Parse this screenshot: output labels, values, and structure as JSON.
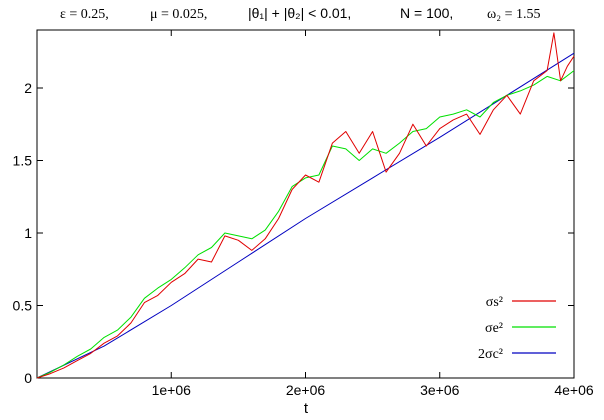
{
  "chart_data": {
    "type": "line",
    "title_parts": [
      "ε = 0.25,",
      "μ = 0.025,",
      "|θ₁| + |θ₂| < 0.01,",
      "N = 100,",
      "ω₂ = 1.55"
    ],
    "xlabel": "t",
    "ylabel": "",
    "xlim": [
      0,
      4000000
    ],
    "ylim": [
      0,
      2.4
    ],
    "x_ticks": [
      1000000,
      2000000,
      3000000,
      4000000
    ],
    "x_tick_labels": [
      "1e+06",
      "2e+06",
      "3e+06",
      "4e+06"
    ],
    "y_ticks": [
      0,
      0.5,
      1,
      1.5,
      2
    ],
    "y_tick_labels": [
      "0",
      "0.5",
      "1",
      "1.5",
      "2"
    ],
    "grid": false,
    "legend_position": "bottom-right",
    "series": [
      {
        "name": "σs²",
        "color": "#e00000",
        "x": [
          0,
          100000,
          200000,
          300000,
          400000,
          500000,
          600000,
          700000,
          800000,
          900000,
          1000000,
          1100000,
          1200000,
          1300000,
          1400000,
          1500000,
          1600000,
          1700000,
          1800000,
          1900000,
          2000000,
          2100000,
          2200000,
          2300000,
          2400000,
          2500000,
          2600000,
          2700000,
          2800000,
          2900000,
          3000000,
          3100000,
          3200000,
          3300000,
          3400000,
          3500000,
          3600000,
          3700000,
          3800000,
          3850000,
          3900000,
          3950000,
          4000000
        ],
        "y": [
          0.0,
          0.03,
          0.07,
          0.12,
          0.17,
          0.24,
          0.29,
          0.38,
          0.52,
          0.57,
          0.66,
          0.72,
          0.82,
          0.8,
          0.98,
          0.95,
          0.88,
          0.96,
          1.1,
          1.3,
          1.4,
          1.35,
          1.62,
          1.7,
          1.55,
          1.7,
          1.42,
          1.55,
          1.75,
          1.6,
          1.72,
          1.78,
          1.82,
          1.68,
          1.85,
          1.95,
          1.82,
          2.05,
          2.12,
          2.38,
          2.05,
          2.15,
          2.22
        ]
      },
      {
        "name": "σe²",
        "color": "#00e000",
        "x": [
          0,
          100000,
          200000,
          300000,
          400000,
          500000,
          600000,
          700000,
          800000,
          900000,
          1000000,
          1100000,
          1200000,
          1300000,
          1400000,
          1500000,
          1600000,
          1700000,
          1800000,
          1900000,
          2000000,
          2100000,
          2200000,
          2300000,
          2400000,
          2500000,
          2600000,
          2700000,
          2800000,
          2900000,
          3000000,
          3100000,
          3200000,
          3300000,
          3400000,
          3500000,
          3600000,
          3700000,
          3800000,
          3900000,
          4000000
        ],
        "y": [
          0.0,
          0.04,
          0.09,
          0.15,
          0.2,
          0.28,
          0.33,
          0.42,
          0.55,
          0.62,
          0.68,
          0.76,
          0.85,
          0.9,
          1.0,
          0.98,
          0.96,
          1.02,
          1.15,
          1.32,
          1.38,
          1.4,
          1.6,
          1.58,
          1.5,
          1.58,
          1.55,
          1.62,
          1.7,
          1.72,
          1.8,
          1.82,
          1.85,
          1.8,
          1.9,
          1.95,
          1.98,
          2.02,
          2.08,
          2.05,
          2.12
        ]
      },
      {
        "name": "2σc²",
        "color": "#0000c0",
        "x": [
          0,
          500000,
          1000000,
          1500000,
          2000000,
          2500000,
          3000000,
          3500000,
          4000000
        ],
        "y": [
          0.0,
          0.22,
          0.5,
          0.8,
          1.1,
          1.38,
          1.66,
          1.95,
          2.24
        ]
      }
    ]
  }
}
